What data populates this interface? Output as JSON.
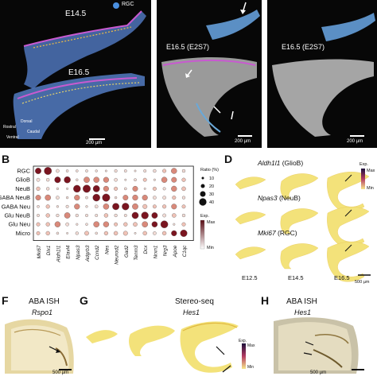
{
  "panelA": {
    "e145": "E14.5",
    "e165": "E16.5",
    "legend_rgc": "RGC",
    "compass": {
      "rostral": "Rostral",
      "dorsal": "Dorsal",
      "ventral": "Ventral",
      "caudal": "Caudal"
    },
    "scale": "200 µm"
  },
  "panelMid": {
    "title": "E16.5 (E2S7)",
    "scale": "200 µm"
  },
  "panelRight": {
    "title": "E16.5 (E2S7)",
    "scale": "200 µm"
  },
  "panelB": {
    "label": "B",
    "rows": [
      "RGC",
      "GlioB",
      "NeuB",
      "GABA NeuB",
      "GABA Neu",
      "Glu NeuB",
      "Glu Neu",
      "Micro"
    ],
    "genes": [
      "Mki67",
      "Dlx1",
      "Aldh1l1",
      "Elavl4",
      "Npas3",
      "Adgrb3",
      "Ccnd2",
      "Nes",
      "Neurod2",
      "Gad2",
      "Tenm3",
      "Dcx",
      "Nrxn1",
      "Nrg3",
      "Apoe",
      "C1qc"
    ],
    "ratio_title": "Ratio (%)",
    "ratio_levels": [
      "10",
      "20",
      "30",
      "40"
    ],
    "exp_title": "Exp.",
    "exp_max": "Max",
    "exp_min": "Min",
    "colors": {
      "high": "#5a0e16",
      "low": "#ffffff"
    }
  },
  "panelD": {
    "label": "D",
    "rows": [
      {
        "gene": "Aldh1l1",
        "type": " (GlioB)"
      },
      {
        "gene": "Npas3",
        "type": " (NeuB)"
      },
      {
        "gene": "Mki67",
        "type": " (RGC)"
      }
    ],
    "ages": [
      "E12.5",
      "E14.5",
      "E16.5"
    ],
    "exp_title": "Exp.",
    "exp_max": "Max",
    "exp_min": "Min",
    "scale": "500 µm"
  },
  "panelF": {
    "label": "F",
    "title": "ABA ISH",
    "gene": "Rspo1",
    "scale": "500 µm"
  },
  "panelG": {
    "label": "G",
    "title": "Stereo-seq",
    "gene": "Hes1",
    "exp_title": "Exp.",
    "exp_max": "Max",
    "exp_min": "Min"
  },
  "panelH": {
    "label": "H",
    "title": "ABA ISH",
    "gene": "Hes1",
    "scale": "500 µm"
  }
}
